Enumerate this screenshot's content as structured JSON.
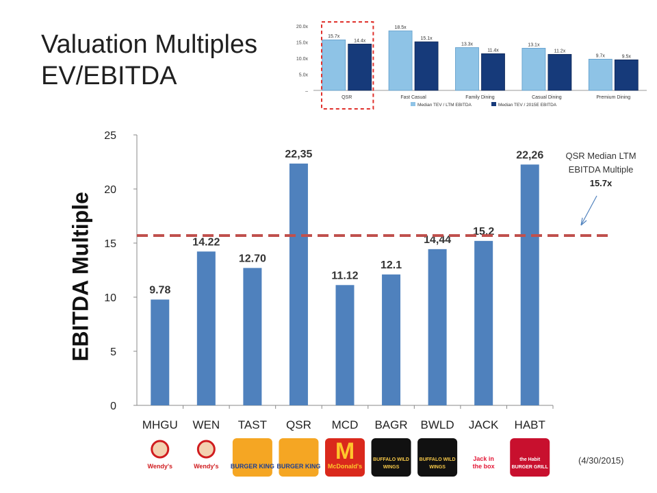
{
  "title": {
    "line1": "Valuation Multiples",
    "line2": "EV/EBITDA"
  },
  "footnote": {
    "date": "(4/30/2015)"
  },
  "colors": {
    "bar": "#4f81bd",
    "median_line": "#c0504d",
    "inset_light": "#8ec3e6",
    "inset_dark": "#163a7a",
    "highlight": "#e0302b"
  },
  "median_note": {
    "line1": "QSR Median LTM",
    "line2": "EBITDA Multiple",
    "value": "15.7x"
  },
  "chart_data": [
    {
      "type": "bar",
      "ylabel": "EBITDA Multiple",
      "ylim": [
        0,
        25
      ],
      "yticks": [
        0,
        5,
        10,
        15,
        20,
        25
      ],
      "categories": [
        "MHGU",
        "WEN",
        "TAST",
        "QSR",
        "MCD",
        "BAGR",
        "BWLD",
        "JACK",
        "HABT"
      ],
      "values": [
        9.78,
        14.22,
        12.7,
        22.35,
        11.12,
        12.1,
        14.44,
        15.2,
        22.26
      ],
      "data_labels": [
        "9.78",
        "14.22",
        "12.70",
        "22,35",
        "11.12",
        "12.1",
        "14,44",
        "15,2",
        "22,26"
      ],
      "reference_line": {
        "value": 15.7,
        "style": "dashed"
      },
      "logos": [
        "Wendy's",
        "Wendy's",
        "BURGER KING",
        "BURGER KING",
        "McDonald's",
        "BUFFALO WILD WINGS",
        "BUFFALO WILD WINGS",
        "Jack in the box",
        "the Habit BURGER GRILL"
      ],
      "grid": false
    },
    {
      "type": "bar",
      "ylim": [
        0,
        20
      ],
      "yticks": [
        "20.0x",
        "15.0x",
        "10.0x",
        "5.0x",
        "–"
      ],
      "categories": [
        "QSR",
        "Fast Casual",
        "Family Dining",
        "Casual Dining",
        "Premium Dining"
      ],
      "series": [
        {
          "name": "Median TEV / LTM EBITDA",
          "values": [
            15.7,
            18.5,
            13.3,
            13.1,
            9.7
          ],
          "labels": [
            "15.7x",
            "18.5x",
            "13.3x",
            "13.1x",
            "9.7x"
          ]
        },
        {
          "name": "Median TEV / 2015E EBITDA",
          "values": [
            14.4,
            15.1,
            11.4,
            11.2,
            9.5
          ],
          "labels": [
            "14.4x",
            "15.1x",
            "11.4x",
            "11.2x",
            "9.5x"
          ]
        }
      ],
      "highlight_category": "QSR",
      "legend": "bottom"
    }
  ]
}
